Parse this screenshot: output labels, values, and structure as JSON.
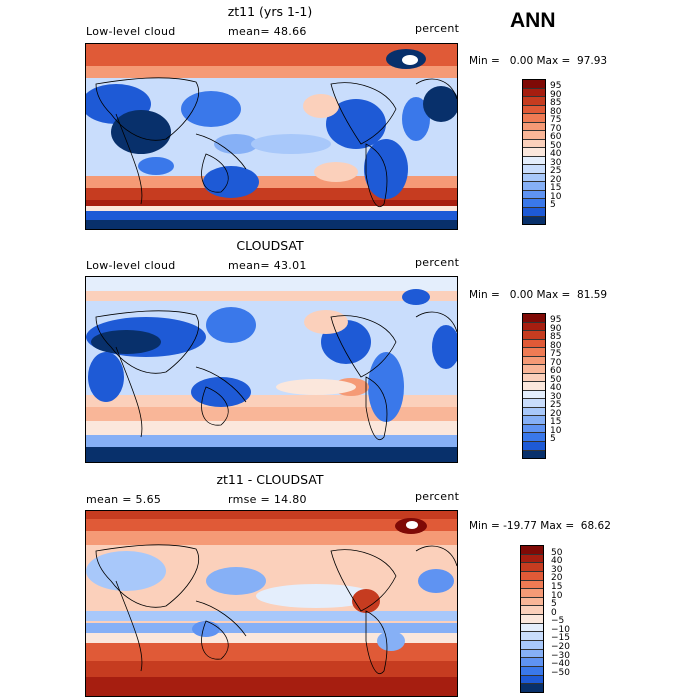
{
  "season": "ANN",
  "palette_abs": [
    "#08306b",
    "#1e5ad6",
    "#3a78ea",
    "#5f93f2",
    "#86b0f6",
    "#a8c8fa",
    "#c9ddfc",
    "#e4eefc",
    "#fbe7dc",
    "#fbd0bb",
    "#f9b698",
    "#f59a76",
    "#ef7b54",
    "#e05a37",
    "#c63c20",
    "#a61e10",
    "#7f0a06"
  ],
  "palette_diff": [
    "#08306b",
    "#1e5ad6",
    "#3a78ea",
    "#5f93f2",
    "#86b0f6",
    "#a8c8fa",
    "#c9ddfc",
    "#e4eefc",
    "#fbe7dc",
    "#fbd0bb",
    "#f9b698",
    "#f59a76",
    "#ef7b54",
    "#e05a37",
    "#c63c20",
    "#a61e10",
    "#7f0a06"
  ],
  "panels": [
    {
      "title": "zt11 (yrs 1-1)",
      "left_label": "Low-level cloud",
      "stat_text": "mean=  48.66",
      "unit": "percent",
      "min_max": "Min =   0.00 Max =  97.93",
      "colorbar_labels": [
        "95",
        "90",
        "85",
        "80",
        "75",
        "70",
        "60",
        "50",
        "40",
        "30",
        "25",
        "20",
        "15",
        "10",
        "5"
      ],
      "mean": 48.66
    },
    {
      "title": "CLOUDSAT",
      "left_label": "Low-level cloud",
      "stat_text": "mean=  43.01",
      "unit": "percent",
      "min_max": "Min =   0.00 Max =  81.59",
      "colorbar_labels": [
        "95",
        "90",
        "85",
        "80",
        "75",
        "70",
        "60",
        "50",
        "40",
        "30",
        "25",
        "20",
        "15",
        "10",
        "5"
      ],
      "mean": 43.01
    },
    {
      "title": "zt11 - CLOUDSAT",
      "left_label": "mean =    5.65",
      "stat_text": "rmse =  14.80",
      "unit": "percent",
      "min_max": "Min = -19.77 Max =  68.62",
      "colorbar_labels": [
        "50",
        "40",
        "30",
        "20",
        "15",
        "10",
        "5",
        "0",
        "−5",
        "−10",
        "−15",
        "−20",
        "−30",
        "−40",
        "−50"
      ],
      "mean": 5.65,
      "rmse": 14.8
    }
  ]
}
